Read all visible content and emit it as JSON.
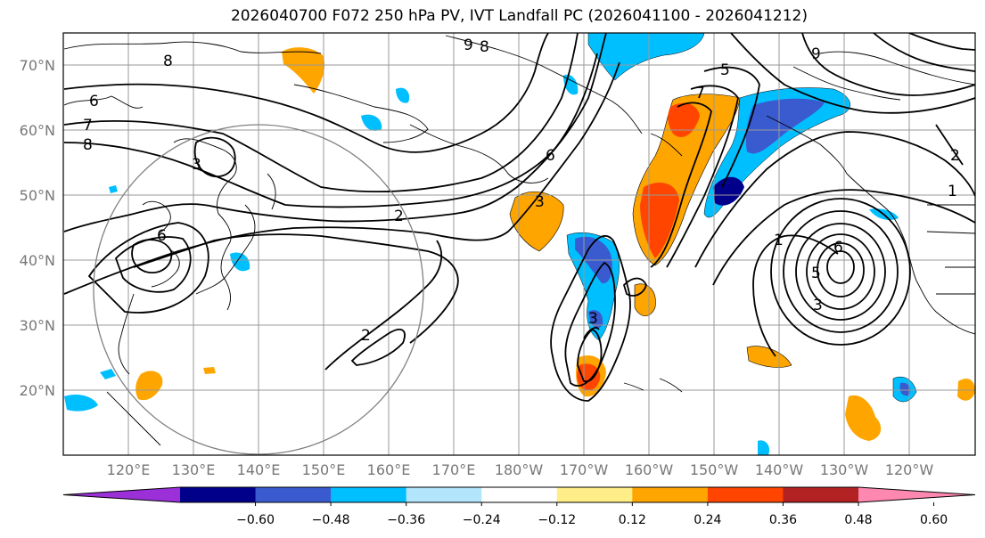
{
  "title": "2026040700 F072 250 hPa PV, IVT Landfall PC (2026041100 - 2026041212)",
  "map": {
    "latitude_labels": [
      "70°N",
      "60°N",
      "50°N",
      "40°N",
      "30°N",
      "20°N"
    ],
    "longitude_labels": [
      "120°E",
      "130°E",
      "140°E",
      "150°E",
      "160°E",
      "170°E",
      "180°W",
      "170°W",
      "160°W",
      "150°W",
      "140°W",
      "130°W",
      "120°W"
    ],
    "contour_labels": [
      "6",
      "7",
      "8",
      "3",
      "6",
      "2",
      "2",
      "3",
      "3",
      "9",
      "8",
      "6",
      "5",
      "7",
      "1",
      "1",
      "5",
      "6",
      "3",
      "2",
      "8",
      "9"
    ]
  },
  "colorbar": {
    "colors": [
      "#9b30d9",
      "#00008b",
      "#3a5bd0",
      "#00bfff",
      "#b3e5fc",
      "#ffffff",
      "#ffee88",
      "#ffa500",
      "#ff4500",
      "#b22222",
      "#ff88b0"
    ],
    "tick_labels": [
      "−0.60",
      "−0.48",
      "−0.36",
      "−0.24",
      "−0.12",
      "0.12",
      "0.24",
      "0.36",
      "0.48",
      "0.60"
    ]
  }
}
